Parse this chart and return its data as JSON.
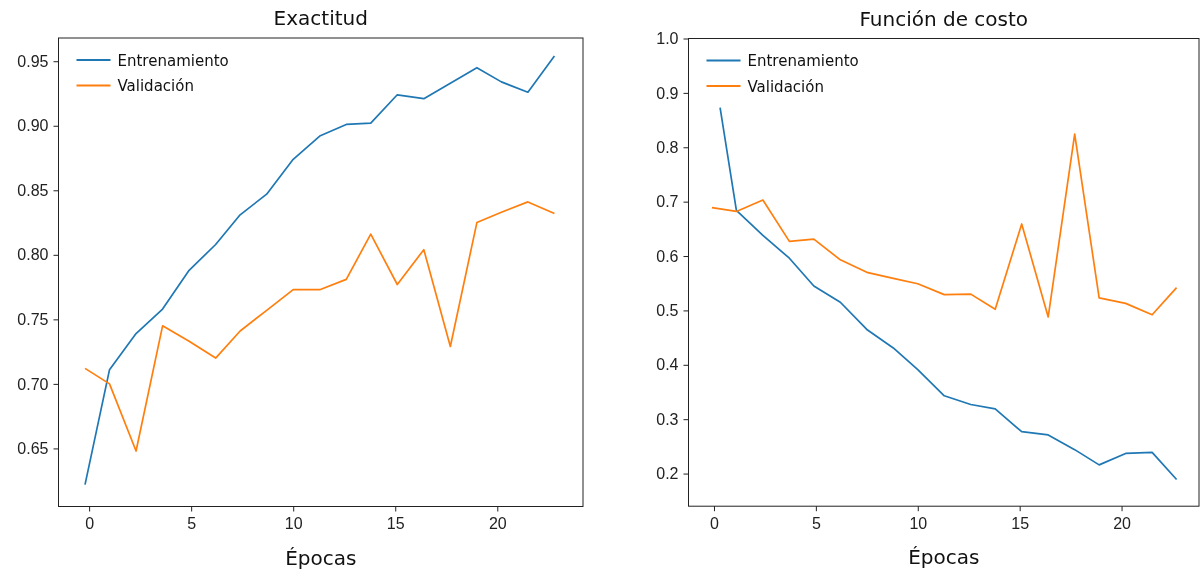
{
  "chart_data": [
    {
      "type": "line",
      "title": "Exactitud",
      "xlabel": "Épocas",
      "legend": "top left",
      "x": [
        -0.2,
        1.0,
        2.3,
        3.6,
        4.9,
        6.2,
        7.4,
        8.7,
        10.0,
        11.3,
        12.6,
        13.8,
        15.1,
        16.4,
        17.7,
        19.0,
        20.2,
        21.5,
        22.8
      ],
      "series": [
        {
          "name": "Entrenamiento",
          "color": "#1f77b4",
          "values": [
            0.622,
            0.711,
            0.739,
            0.758,
            0.788,
            0.808,
            0.831,
            0.847,
            0.874,
            0.892,
            0.901,
            0.902,
            0.924,
            0.921,
            0.933,
            0.945,
            0.934,
            0.926,
            0.954
          ]
        },
        {
          "name": "Validación",
          "color": "#ff7f0e",
          "values": [
            0.712,
            0.7,
            0.648,
            0.745,
            0.733,
            0.72,
            0.741,
            0.757,
            0.773,
            0.773,
            0.781,
            0.816,
            0.777,
            0.804,
            0.729,
            0.825,
            0.833,
            0.841,
            0.832
          ]
        }
      ],
      "xlim": [
        -1.5,
        24.2
      ],
      "xticks": [
        0,
        5,
        10,
        15,
        20
      ],
      "ylim": [
        0.605,
        0.968
      ],
      "yticks": [
        0.65,
        {
          "value": 0.7,
          "label": "0.70"
        },
        0.75,
        {
          "value": 0.8,
          "label": "0.80"
        },
        0.85,
        {
          "value": 0.9,
          "label": "0.90"
        },
        0.95
      ]
    },
    {
      "type": "line",
      "title": "Función de costo",
      "xlabel": "Épocas",
      "legend": "top left",
      "x": [
        -0.1,
        1.1,
        2.4,
        3.7,
        4.9,
        6.2,
        7.5,
        8.8,
        10.0,
        11.3,
        12.6,
        13.8,
        15.1,
        16.4,
        17.7,
        18.9,
        20.2,
        21.5,
        22.7
      ],
      "series": [
        {
          "name": "Entrenamiento",
          "color": "#1f77b4",
          "x": [
            0.3,
            1.1,
            2.4,
            3.7,
            4.9,
            6.2,
            7.5,
            8.8,
            10.0,
            11.3,
            12.6,
            13.8,
            15.1,
            16.4,
            17.7,
            18.9,
            20.2,
            21.5,
            22.7
          ],
          "values": [
            0.873,
            0.684,
            0.638,
            0.596,
            0.545,
            0.515,
            0.465,
            0.431,
            0.391,
            0.343,
            0.327,
            0.319,
            0.277,
            0.271,
            0.244,
            0.216,
            0.237,
            0.239,
            0.189
          ]
        },
        {
          "name": "Validación",
          "color": "#ff7f0e",
          "values": [
            0.689,
            0.682,
            0.703,
            0.627,
            0.631,
            0.593,
            0.57,
            0.559,
            0.549,
            0.529,
            0.53,
            0.502,
            0.659,
            0.488,
            0.824,
            0.523,
            0.513,
            0.492,
            0.542
          ]
        }
      ],
      "xlim": [
        -1.25,
        23.8
      ],
      "xticks": [
        0,
        5,
        10,
        15,
        20
      ],
      "ylim": [
        0.14,
        1.0
      ],
      "yticks": [
        0.2,
        0.3,
        0.4,
        0.5,
        0.6,
        0.7,
        0.8,
        0.9,
        {
          "value": 1,
          "label": "1.0"
        }
      ]
    }
  ]
}
